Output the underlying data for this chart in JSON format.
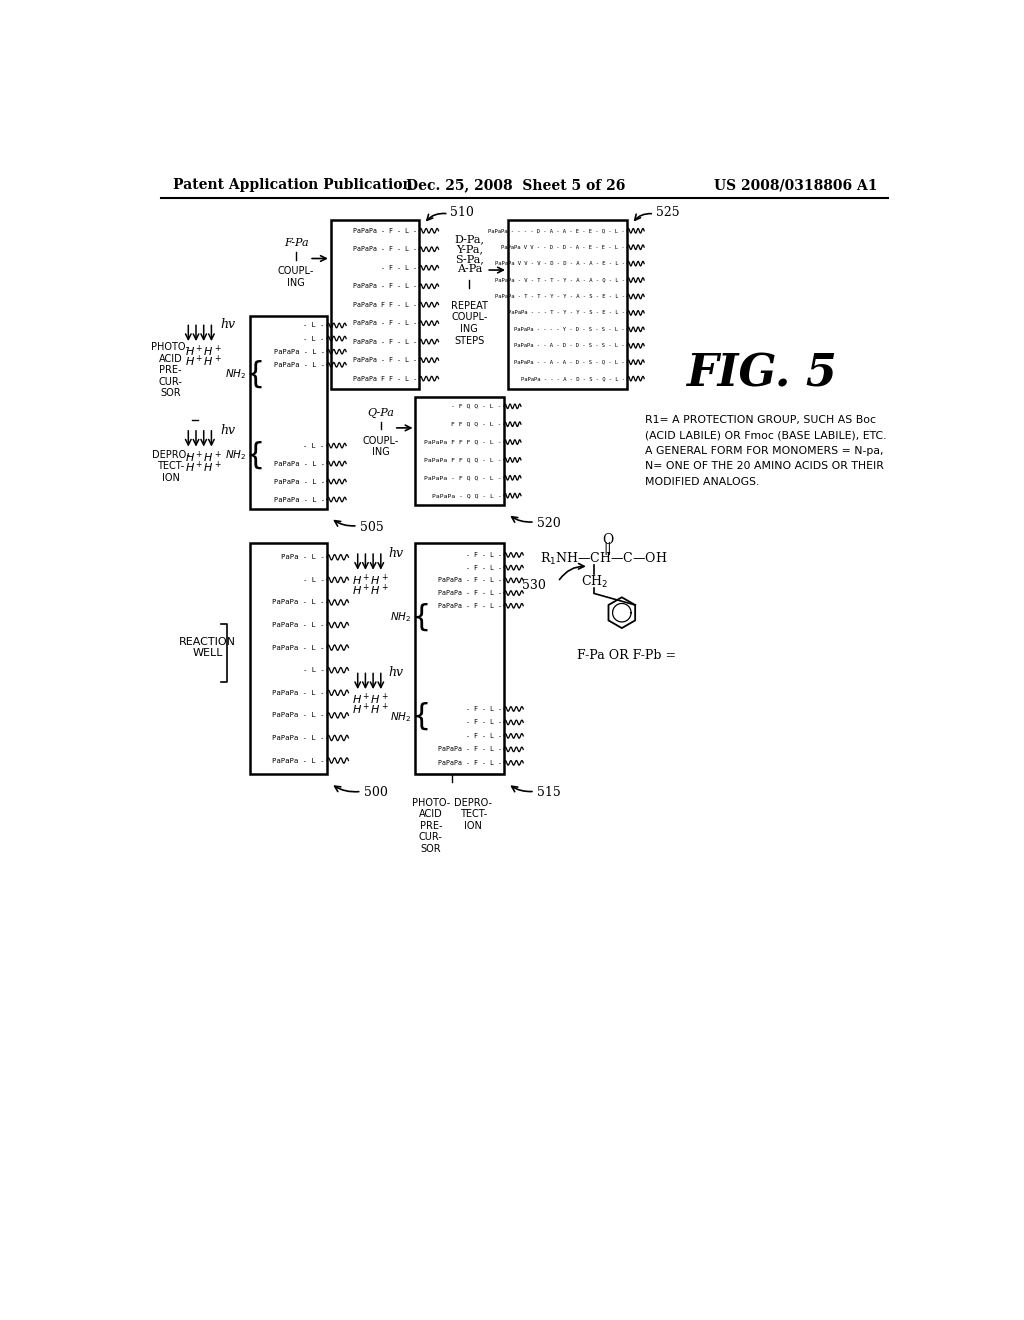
{
  "bg_color": "#ffffff",
  "header_left": "Patent Application Publication",
  "header_center": "Dec. 25, 2008  Sheet 5 of 26",
  "header_right": "US 2008/0318806 A1",
  "fig_label": "FIG. 5"
}
